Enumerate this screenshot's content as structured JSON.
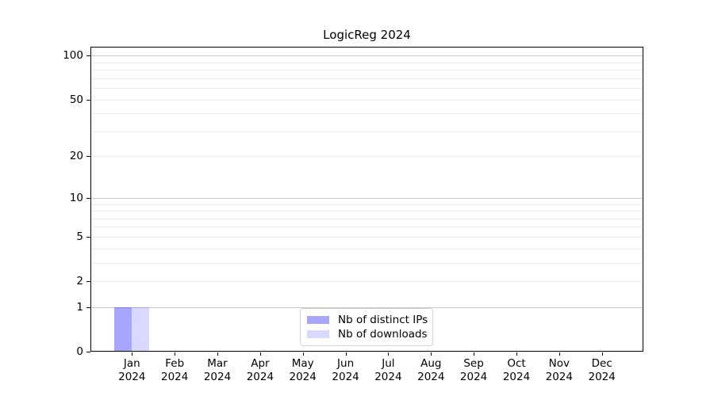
{
  "chart_data": {
    "type": "bar",
    "title": "LogicReg 2024",
    "xlabel": "",
    "ylabel": "",
    "year": "2024",
    "months": [
      "Jan",
      "Feb",
      "Mar",
      "Apr",
      "May",
      "Jun",
      "Jul",
      "Aug",
      "Sep",
      "Oct",
      "Nov",
      "Dec"
    ],
    "categories": [
      "Jan 2024",
      "Feb 2024",
      "Mar 2024",
      "Apr 2024",
      "May 2024",
      "Jun 2024",
      "Jul 2024",
      "Aug 2024",
      "Sep 2024",
      "Oct 2024",
      "Nov 2024",
      "Dec 2024"
    ],
    "series": [
      {
        "name": "Nb of distinct IPs",
        "color": "rgba(0,0,255,0.35)",
        "values": [
          1,
          0,
          0,
          0,
          0,
          0,
          0,
          0,
          0,
          0,
          0,
          0
        ]
      },
      {
        "name": "Nb of downloads",
        "color": "rgba(0,0,255,0.15)",
        "values": [
          1,
          0,
          0,
          0,
          0,
          0,
          0,
          0,
          0,
          0,
          0,
          0
        ]
      }
    ],
    "yscale": "log1p",
    "ylim": [
      0,
      115
    ],
    "yticks": [
      0,
      1,
      2,
      5,
      10,
      20,
      50,
      100
    ],
    "grid_major": [
      1,
      10,
      100
    ],
    "grid_minor": [
      2,
      3,
      4,
      5,
      6,
      7,
      8,
      9,
      20,
      30,
      40,
      50,
      60,
      70,
      80,
      90
    ],
    "grid": true,
    "legend_position": "lower center",
    "colors": {
      "grid_major": "#c7c7c7",
      "grid_minor": "#ededed",
      "spine": "#000000",
      "text": "#000000"
    }
  }
}
